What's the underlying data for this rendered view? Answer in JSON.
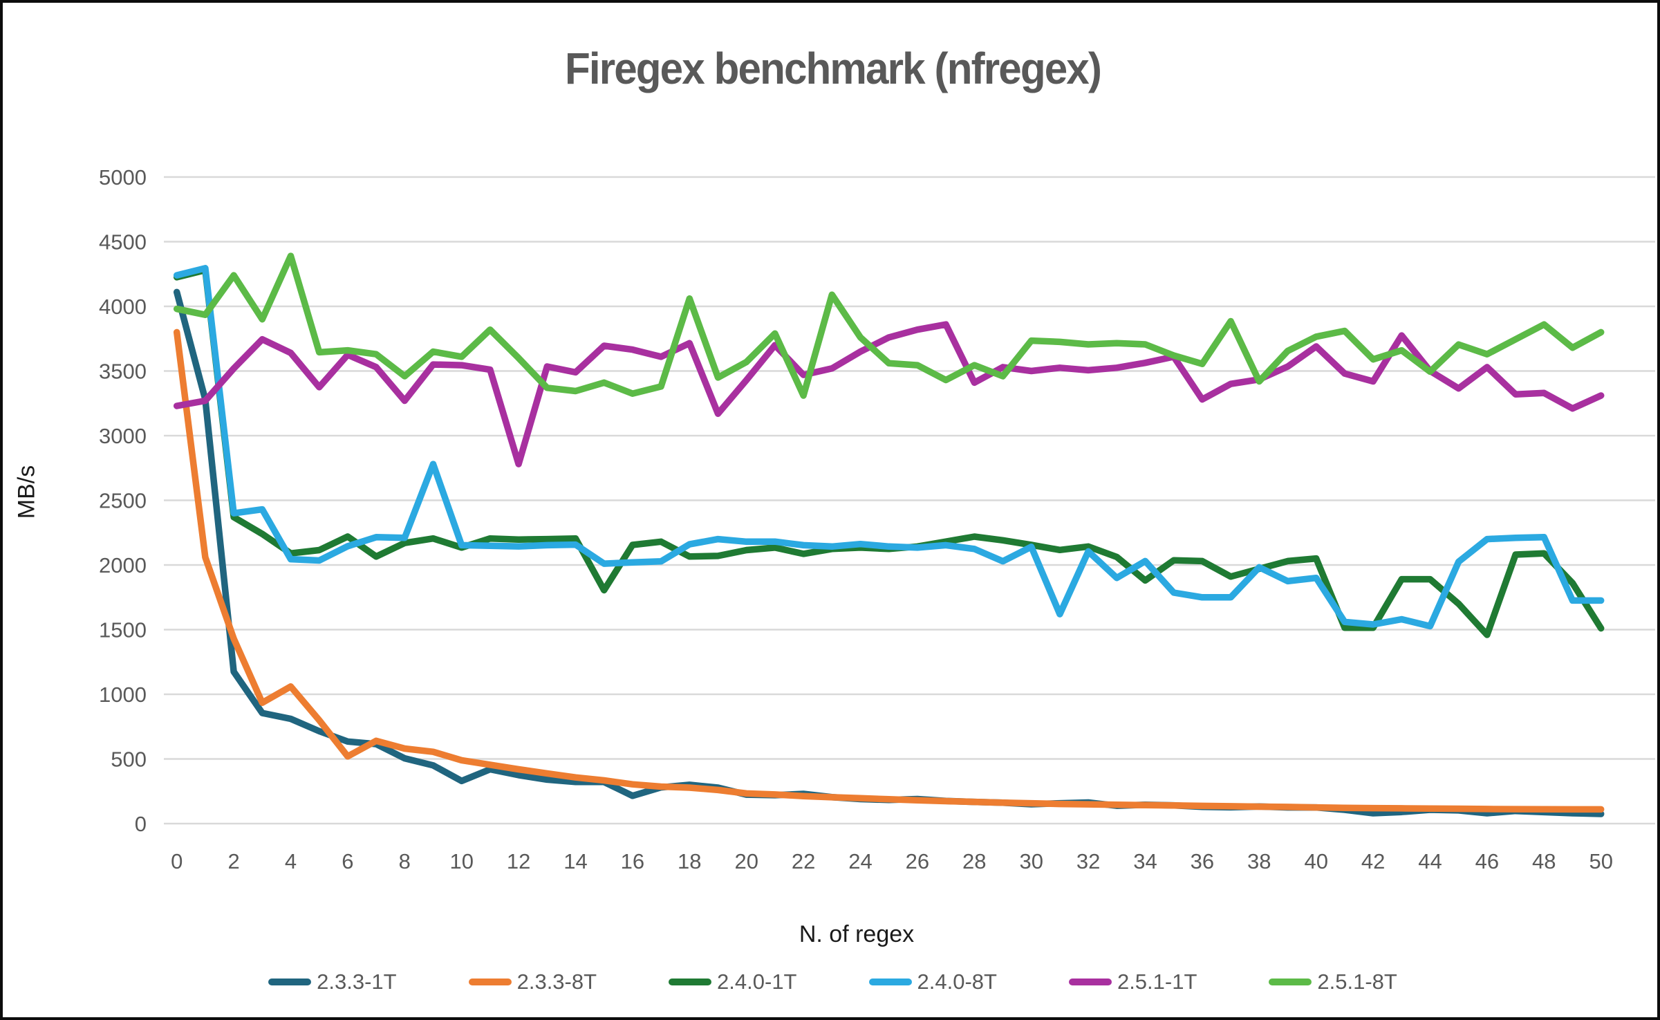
{
  "title": "Firegex benchmark (nfregex)",
  "chart_data": {
    "type": "line",
    "title": "Firegex benchmark (nfregex)",
    "xlabel": "N. of regex",
    "ylabel": "MB/s",
    "xlim": [
      0,
      50
    ],
    "x_tick_step": 2,
    "ylim": [
      0,
      5000
    ],
    "y_tick_step": 500,
    "grid": "horizontal-only",
    "gridline_color": "#d9d9d9",
    "legend_position": "bottom",
    "x": [
      0,
      1,
      2,
      3,
      4,
      5,
      6,
      7,
      8,
      9,
      10,
      11,
      12,
      13,
      14,
      15,
      16,
      17,
      18,
      19,
      20,
      21,
      22,
      23,
      24,
      25,
      26,
      27,
      28,
      29,
      30,
      31,
      32,
      33,
      34,
      35,
      36,
      37,
      38,
      39,
      40,
      41,
      42,
      43,
      44,
      45,
      46,
      47,
      48,
      49,
      50
    ],
    "series": [
      {
        "name": "2.3.3-1T",
        "color": "#20657F",
        "values": [
          4110,
          3280,
          1175,
          855,
          810,
          715,
          635,
          615,
          505,
          450,
          330,
          420,
          375,
          340,
          322,
          322,
          215,
          280,
          300,
          278,
          224,
          220,
          230,
          205,
          190,
          183,
          190,
          175,
          168,
          162,
          150,
          157,
          163,
          138,
          146,
          141,
          130,
          126,
          132,
          125,
          125,
          107,
          80,
          90,
          107,
          102,
          80,
          98,
          89,
          80,
          75
        ]
      },
      {
        "name": "2.3.3-8T",
        "color": "#ED7D31",
        "values": [
          3800,
          2060,
          1430,
          935,
          1060,
          800,
          520,
          640,
          580,
          555,
          490,
          455,
          420,
          388,
          357,
          334,
          304,
          286,
          278,
          260,
          233,
          225,
          213,
          204,
          196,
          188,
          180,
          174,
          168,
          162,
          157,
          152,
          149,
          146,
          143,
          140,
          137,
          134,
          131,
          129,
          125,
          122,
          120,
          118,
          116,
          115,
          113,
          112,
          111,
          110,
          110
        ]
      },
      {
        "name": "2.4.0-1T",
        "color": "#1F7A33",
        "values": [
          4225,
          4280,
          2370,
          2240,
          2090,
          2115,
          2220,
          2065,
          2170,
          2205,
          2135,
          2205,
          2197,
          2200,
          2205,
          1805,
          2155,
          2180,
          2065,
          2070,
          2115,
          2134,
          2086,
          2124,
          2134,
          2124,
          2143,
          2181,
          2219,
          2191,
          2155,
          2116,
          2143,
          2062,
          1880,
          2036,
          2030,
          1910,
          1970,
          2030,
          2050,
          1515,
          1515,
          1890,
          1890,
          1700,
          1460,
          2080,
          2090,
          1860,
          1510
        ]
      },
      {
        "name": "2.4.0-8T",
        "color": "#2BA9E1",
        "values": [
          4240,
          4295,
          2400,
          2430,
          2045,
          2035,
          2145,
          2215,
          2210,
          2780,
          2153,
          2148,
          2144,
          2153,
          2157,
          2010,
          2020,
          2028,
          2160,
          2200,
          2180,
          2181,
          2153,
          2143,
          2162,
          2143,
          2134,
          2153,
          2124,
          2029,
          2140,
          1620,
          2105,
          1900,
          2030,
          1786,
          1750,
          1750,
          1982,
          1875,
          1900,
          1560,
          1540,
          1580,
          1527,
          2025,
          2200,
          2210,
          2215,
          1725,
          1725
        ]
      },
      {
        "name": "2.5.1-1T",
        "color": "#A8309F",
        "values": [
          3230,
          3270,
          3520,
          3745,
          3640,
          3375,
          3625,
          3530,
          3270,
          3550,
          3545,
          3510,
          2780,
          3535,
          3490,
          3695,
          3665,
          3610,
          3715,
          3170,
          3430,
          3700,
          3470,
          3520,
          3650,
          3760,
          3820,
          3860,
          3410,
          3530,
          3500,
          3525,
          3506,
          3525,
          3563,
          3610,
          3280,
          3400,
          3435,
          3534,
          3690,
          3480,
          3420,
          3775,
          3500,
          3365,
          3530,
          3320,
          3330,
          3210,
          3310
        ]
      },
      {
        "name": "2.5.1-8T",
        "color": "#5CBA47",
        "values": [
          3980,
          3935,
          4240,
          3900,
          4390,
          3645,
          3660,
          3630,
          3460,
          3650,
          3610,
          3820,
          3600,
          3370,
          3345,
          3410,
          3325,
          3380,
          4060,
          3450,
          3570,
          3790,
          3310,
          4090,
          3760,
          3560,
          3545,
          3430,
          3545,
          3460,
          3735,
          3725,
          3706,
          3715,
          3706,
          3620,
          3555,
          3885,
          3420,
          3655,
          3765,
          3810,
          3590,
          3660,
          3495,
          3705,
          3630,
          3745,
          3860,
          3680,
          3800
        ]
      }
    ]
  },
  "layout_text": {
    "y_ticks": [
      "5000",
      "4500",
      "4000",
      "3500",
      "3000",
      "2500",
      "2000",
      "1500",
      "1000",
      "500",
      "0"
    ],
    "x_ticks": [
      "0",
      "2",
      "4",
      "6",
      "8",
      "10",
      "12",
      "14",
      "16",
      "18",
      "20",
      "22",
      "24",
      "26",
      "28",
      "30",
      "32",
      "34",
      "36",
      "38",
      "40",
      "42",
      "44",
      "46",
      "48",
      "50"
    ]
  }
}
